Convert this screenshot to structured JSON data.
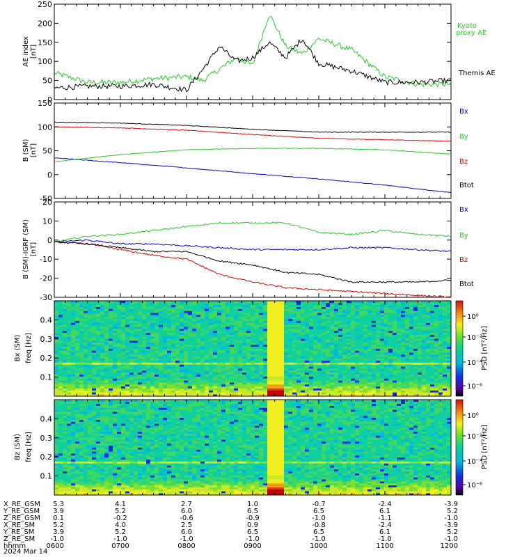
{
  "panels": {
    "ae": {
      "ylabel": "AE index",
      "yunit": "[nT]",
      "ylim": [
        0,
        250
      ],
      "yticks": [
        "0",
        "50",
        "100",
        "150",
        "200",
        "250"
      ],
      "legend": [
        {
          "text": "Kyoto",
          "color": "#22cc22"
        },
        {
          "text": "proxy AE",
          "color": "#22cc22"
        },
        {
          "text": "Themis AE",
          "color": "#000000"
        }
      ]
    },
    "bsm": {
      "ylabel": "B (SM)",
      "yunit": "[nT]",
      "ylim": [
        -50,
        150
      ],
      "yticks": [
        "-50",
        "0",
        "50",
        "100",
        "150"
      ],
      "legend": [
        {
          "text": "Bx",
          "color": "#0000cc"
        },
        {
          "text": "By",
          "color": "#22cc22"
        },
        {
          "text": "Bz",
          "color": "#dd0000"
        },
        {
          "text": "Btot",
          "color": "#000000"
        }
      ]
    },
    "bdiff": {
      "ylabel": "B (SM)-IGRF (SM)",
      "yunit": "[nT]",
      "ylim": [
        -30,
        20
      ],
      "yticks": [
        "-30",
        "-20",
        "-10",
        "0",
        "10",
        "20"
      ],
      "legend": [
        {
          "text": "Bx",
          "color": "#0000cc"
        },
        {
          "text": "By",
          "color": "#22cc22"
        },
        {
          "text": "Bz",
          "color": "#dd0000"
        },
        {
          "text": "Btot",
          "color": "#000000"
        }
      ]
    },
    "spec_bx": {
      "ylabel1": "Bx (SM)",
      "ylabel2": "freq [Hz]",
      "yticks": [
        "0.1",
        "0.2",
        "0.3",
        "0.4"
      ],
      "cbar_label": "PSD [nT²/Hz]",
      "cbar_ticks": [
        "10⁰",
        "10⁻²",
        "10⁻⁴",
        "10⁻⁶"
      ]
    },
    "spec_bz": {
      "ylabel1": "Bz (SM)",
      "ylabel2": "freq [Hz]",
      "yticks": [
        "0.1",
        "0.2",
        "0.3",
        "0.4"
      ],
      "cbar_label": "PSD [nT²/Hz]",
      "cbar_ticks": [
        "10⁰",
        "10⁻²",
        "10⁻⁴",
        "10⁻⁶"
      ]
    }
  },
  "ephemeris": {
    "rows": [
      {
        "label": "X_RE_GSM",
        "values": [
          "5.3",
          "4.1",
          "2.7",
          "1.0",
          "-0.7",
          "-2.4",
          "-3.9"
        ]
      },
      {
        "label": "Y_RE_GSM",
        "values": [
          "3.9",
          "5.2",
          "6.0",
          "6.5",
          "6.5",
          "6.1",
          "5.2"
        ]
      },
      {
        "label": "Z_RE_GSM",
        "values": [
          "0.1",
          "-0.2",
          "-0.6",
          "-0.9",
          "-1.0",
          "-1.1",
          "-1.0"
        ]
      },
      {
        "label": "X_RE_SM",
        "values": [
          "5.2",
          "4.0",
          "2.5",
          "0.9",
          "-0.8",
          "-2.4",
          "-3.9"
        ]
      },
      {
        "label": "Y_RE_SM",
        "values": [
          "3.9",
          "5.2",
          "6.0",
          "6.5",
          "6.5",
          "6.1",
          "5.2"
        ]
      },
      {
        "label": "Z_RE_SM",
        "values": [
          "-1.0",
          "-1.0",
          "-1.0",
          "-1.0",
          "-1.0",
          "-1.0",
          "-1.0"
        ]
      },
      {
        "label": "hhmm",
        "values": [
          "0600",
          "0700",
          "0800",
          "0900",
          "1000",
          "1100",
          "1200"
        ]
      }
    ],
    "date": "2024 Mar 14"
  },
  "chart_data": [
    {
      "type": "line",
      "ylabel": "AE index [nT]",
      "ylim": [
        0,
        250
      ],
      "x": [
        "0600",
        "0630",
        "0700",
        "0730",
        "0800",
        "0815",
        "0830",
        "0845",
        "0900",
        "0915",
        "0930",
        "0945",
        "1000",
        "1030",
        "1100",
        "1130",
        "1200"
      ],
      "series": [
        {
          "name": "Kyoto proxy AE",
          "color": "#22cc22",
          "values": [
            70,
            45,
            45,
            55,
            60,
            50,
            80,
            110,
            90,
            225,
            140,
            120,
            160,
            130,
            60,
            40,
            40
          ]
        },
        {
          "name": "Themis AE",
          "color": "#000000",
          "values": [
            30,
            35,
            35,
            40,
            25,
            80,
            140,
            100,
            110,
            150,
            110,
            160,
            95,
            75,
            45,
            45,
            50
          ]
        }
      ]
    },
    {
      "type": "line",
      "ylabel": "B (SM) [nT]",
      "ylim": [
        -50,
        150
      ],
      "x": [
        "0600",
        "0700",
        "0800",
        "0900",
        "1000",
        "1100",
        "1200"
      ],
      "series": [
        {
          "name": "Bx",
          "color": "#0000cc",
          "values": [
            35,
            25,
            14,
            2,
            -9,
            -22,
            -38
          ]
        },
        {
          "name": "By",
          "color": "#22cc22",
          "values": [
            27,
            42,
            52,
            55,
            55,
            52,
            43
          ]
        },
        {
          "name": "Bz",
          "color": "#dd0000",
          "values": [
            100,
            98,
            93,
            84,
            76,
            73,
            70
          ]
        },
        {
          "name": "Btot",
          "color": "#000000",
          "values": [
            110,
            108,
            103,
            95,
            89,
            89,
            89
          ]
        }
      ]
    },
    {
      "type": "line",
      "ylabel": "B (SM)-IGRF (SM) [nT]",
      "ylim": [
        -30,
        20
      ],
      "x": [
        "0600",
        "0630",
        "0700",
        "0730",
        "0800",
        "0830",
        "0900",
        "0930",
        "1000",
        "1030",
        "1100",
        "1130",
        "1200"
      ],
      "series": [
        {
          "name": "Bx",
          "color": "#0000cc",
          "values": [
            -1,
            0,
            -2,
            -2,
            -3,
            -4,
            -5,
            -5,
            -5,
            -4,
            -4,
            -5,
            -6
          ]
        },
        {
          "name": "By",
          "color": "#22cc22",
          "values": [
            -1,
            2,
            3,
            5,
            7,
            9,
            9,
            9,
            4,
            3,
            5,
            3,
            2
          ]
        },
        {
          "name": "Bz",
          "color": "#dd0000",
          "values": [
            -1,
            -2,
            -5,
            -8,
            -10,
            -18,
            -22,
            -25,
            -26,
            -27,
            -28,
            -29,
            -30
          ]
        },
        {
          "name": "Btot",
          "color": "#000000",
          "values": [
            -1,
            -2,
            -4,
            -6,
            -6,
            -11,
            -13,
            -17,
            -18,
            -22,
            -22,
            -22,
            -21
          ]
        }
      ]
    },
    {
      "type": "heatmap",
      "ylabel": "Bx (SM) freq [Hz]",
      "colorbar": "PSD [nT²/Hz]",
      "ylim": [
        0,
        0.5
      ],
      "xlim": [
        "0600",
        "1200"
      ]
    },
    {
      "type": "heatmap",
      "ylabel": "Bz (SM) freq [Hz]",
      "colorbar": "PSD [nT²/Hz]",
      "ylim": [
        0,
        0.5
      ],
      "xlim": [
        "0600",
        "1200"
      ]
    }
  ]
}
